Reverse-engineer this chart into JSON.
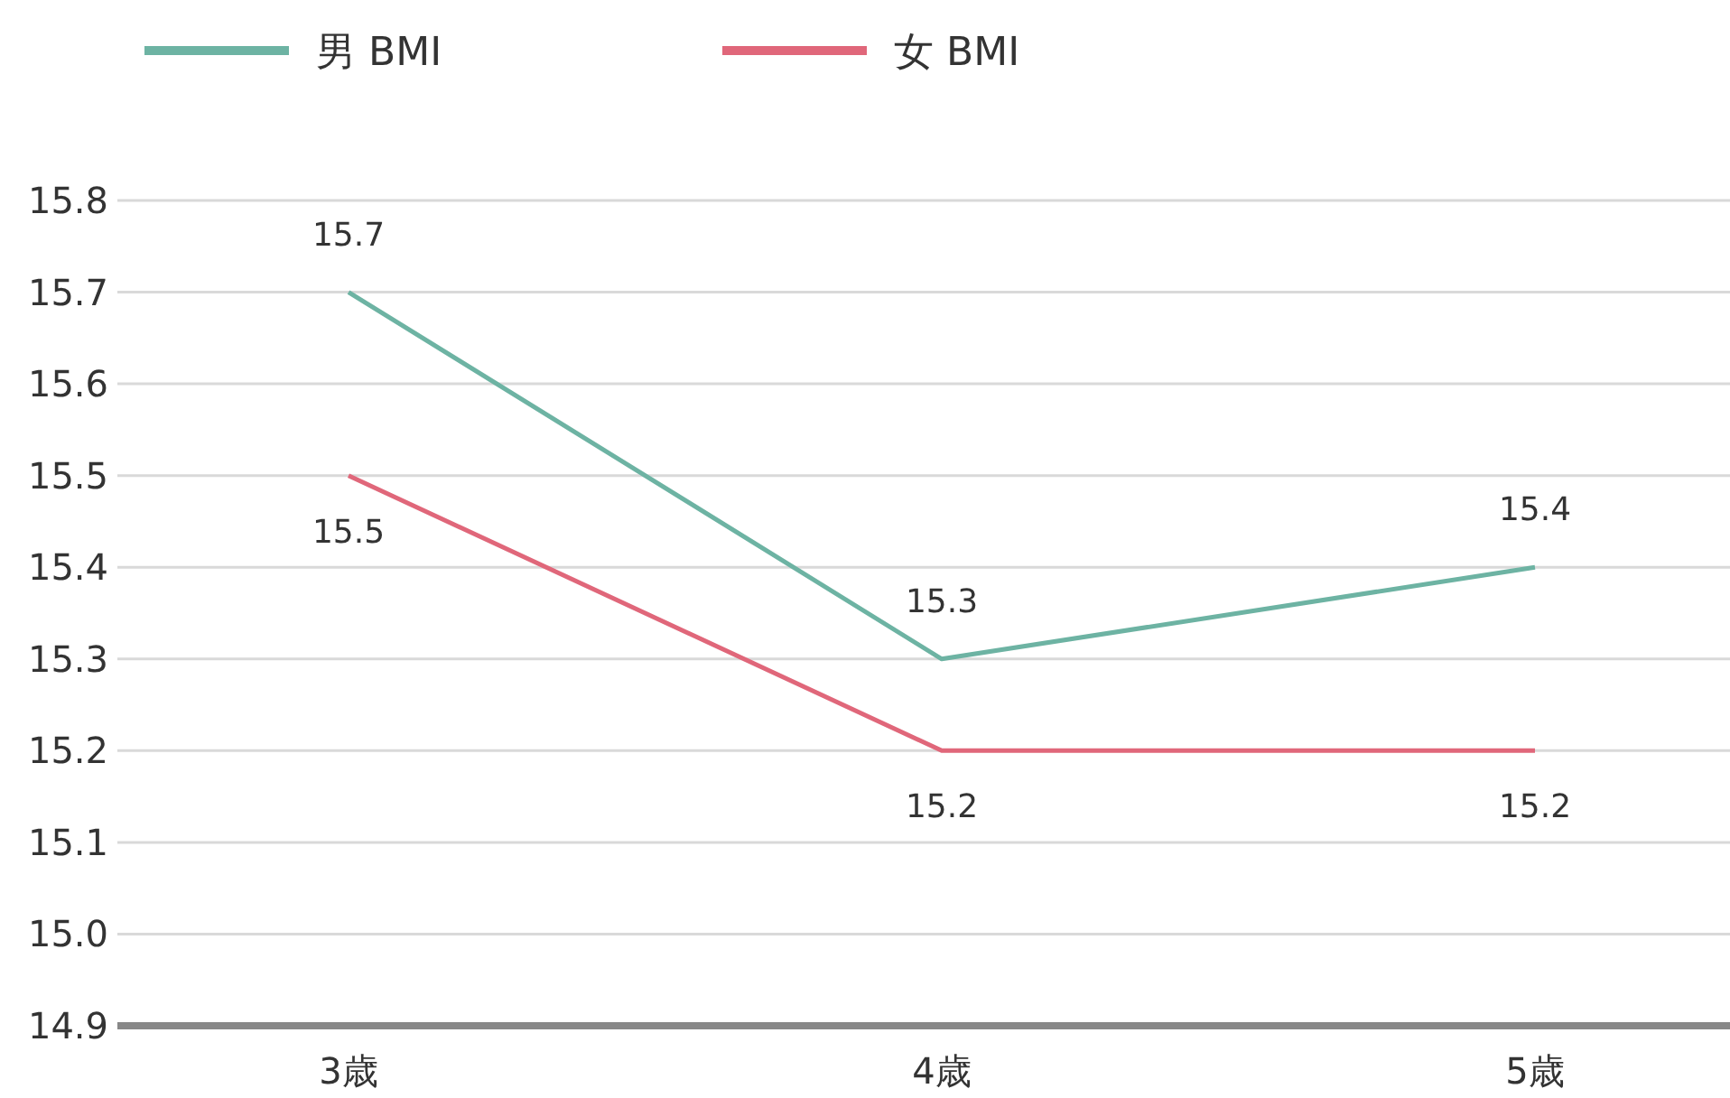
{
  "chart_data": {
    "type": "line",
    "categories": [
      "3歳",
      "4歳",
      "5歳"
    ],
    "series": [
      {
        "name": "男 BMI",
        "color": "#6db3a3",
        "values": [
          15.7,
          15.3,
          15.4
        ]
      },
      {
        "name": "女 BMI",
        "color": "#e0677a",
        "values": [
          15.5,
          15.2,
          15.2
        ]
      }
    ],
    "ylim": [
      14.9,
      15.8
    ],
    "yticks": [
      14.9,
      {
        "value": 15,
        "label": "15.0"
      },
      15.1,
      15.2,
      15.3,
      15.4,
      15.5,
      15.6,
      15.7,
      15.8
    ],
    "grid": "y",
    "legend": "top left",
    "data_labels": true,
    "marker": "none"
  }
}
